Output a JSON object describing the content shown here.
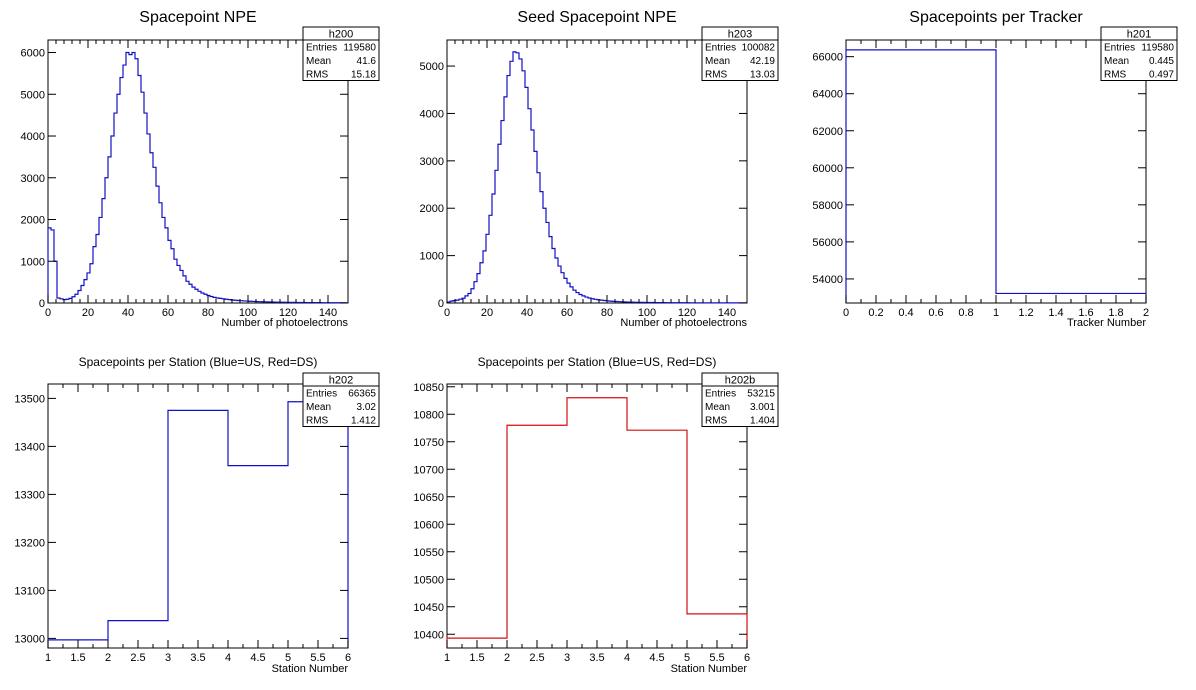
{
  "colors": {
    "blue": "#1010c8",
    "red": "#d01010",
    "axis": "#000000"
  },
  "chart_data": [
    {
      "id": "h200",
      "type": "histogram",
      "title": "Spacepoint NPE",
      "xlabel": "Number of photoelectrons",
      "ylabel": "",
      "xlim": [
        0,
        150
      ],
      "ylim": [
        0,
        6300
      ],
      "x_ticks": [
        0,
        20,
        40,
        60,
        80,
        100,
        120,
        140
      ],
      "y_ticks": [
        0,
        1000,
        2000,
        3000,
        4000,
        5000,
        6000
      ],
      "x_minor": 5,
      "color": "blue",
      "stats": [
        {
          "label": "Entries",
          "value": "119580"
        },
        {
          "label": "Mean",
          "value": "41.6"
        },
        {
          "label": "RMS",
          "value": "15.18"
        }
      ],
      "bin_width": 1.5,
      "values": [
        1800,
        1750,
        1000,
        120,
        100,
        80,
        90,
        110,
        150,
        210,
        300,
        420,
        560,
        720,
        940,
        1350,
        1640,
        2050,
        2500,
        3000,
        3500,
        4000,
        4550,
        5000,
        5400,
        5700,
        6000,
        5950,
        6000,
        5850,
        5450,
        5050,
        4550,
        4050,
        3600,
        3250,
        2800,
        2400,
        2050,
        1800,
        1500,
        1300,
        1050,
        900,
        780,
        650,
        520,
        450,
        380,
        330,
        280,
        240,
        210,
        180,
        155,
        135,
        120,
        110,
        100,
        90,
        80,
        72,
        66,
        60,
        55,
        50,
        46,
        42,
        38,
        35,
        32,
        30,
        28,
        26,
        24,
        22,
        20,
        19,
        18,
        17,
        16,
        15,
        14,
        13,
        12,
        12,
        11,
        10,
        10,
        9,
        9,
        8,
        8,
        7,
        7,
        7,
        6,
        6,
        6,
        5
      ]
    },
    {
      "id": "h203",
      "type": "histogram",
      "title": "Seed Spacepoint NPE",
      "xlabel": "Number of photoelectrons",
      "ylabel": "",
      "xlim": [
        0,
        150
      ],
      "ylim": [
        0,
        5550
      ],
      "x_ticks": [
        0,
        20,
        40,
        60,
        80,
        100,
        120,
        140
      ],
      "y_ticks": [
        0,
        1000,
        2000,
        3000,
        4000,
        5000
      ],
      "x_minor": 5,
      "color": "blue",
      "stats": [
        {
          "label": "Entries",
          "value": "100082"
        },
        {
          "label": "Mean",
          "value": "42.19"
        },
        {
          "label": "RMS",
          "value": "13.03"
        }
      ],
      "bin_width": 1.5,
      "values": [
        20,
        40,
        50,
        60,
        80,
        100,
        150,
        200,
        300,
        450,
        620,
        850,
        1100,
        1450,
        1850,
        2300,
        2800,
        3350,
        3850,
        4350,
        4800,
        5100,
        5300,
        5280,
        5150,
        4900,
        4550,
        4100,
        3650,
        3200,
        2750,
        2350,
        2000,
        1700,
        1400,
        1150,
        950,
        780,
        640,
        520,
        420,
        340,
        270,
        220,
        180,
        150,
        125,
        105,
        90,
        78,
        68,
        60,
        52,
        46,
        40,
        35,
        31,
        28,
        25,
        22,
        20,
        18,
        16,
        15,
        14,
        13,
        12,
        11,
        10,
        9,
        9,
        8,
        8,
        7,
        7,
        6,
        6,
        6,
        5,
        5,
        5,
        4,
        4,
        4,
        4,
        3,
        3,
        3,
        3,
        3,
        3,
        2,
        2,
        2,
        2,
        2,
        2,
        2,
        2,
        2
      ]
    },
    {
      "id": "h201",
      "type": "histogram",
      "title": "Spacepoints per Tracker",
      "xlabel": "Tracker Number",
      "ylabel": "",
      "xlim": [
        0,
        2
      ],
      "ylim": [
        52700,
        66900
      ],
      "x_ticks": [
        0,
        0.2,
        0.4,
        0.6,
        0.8,
        1,
        1.2,
        1.4,
        1.6,
        1.8,
        2
      ],
      "y_ticks": [
        54000,
        56000,
        58000,
        60000,
        62000,
        64000,
        66000
      ],
      "x_minor": 2,
      "color": "blue",
      "stats": [
        {
          "label": "Entries",
          "value": "119580"
        },
        {
          "label": "Mean",
          "value": "0.445"
        },
        {
          "label": "RMS",
          "value": "0.497"
        }
      ],
      "bin_width": 1,
      "values": [
        66365,
        53215
      ]
    },
    {
      "id": "h202",
      "type": "histogram",
      "title": "Spacepoints per Station (Blue=US, Red=DS)",
      "xlabel": "Station Number",
      "ylabel": "",
      "xlim": [
        1,
        6
      ],
      "ylim": [
        12980,
        13530
      ],
      "x_ticks": [
        1,
        1.5,
        2,
        2.5,
        3,
        3.5,
        4,
        4.5,
        5,
        5.5,
        6
      ],
      "y_ticks": [
        13000,
        13100,
        13200,
        13300,
        13400,
        13500
      ],
      "x_minor": 2,
      "color": "blue",
      "stats": [
        {
          "label": "Entries",
          "value": "66365"
        },
        {
          "label": "Mean",
          "value": "3.02"
        },
        {
          "label": "RMS",
          "value": "1.412"
        }
      ],
      "bin_width": 1,
      "values": [
        12997,
        13037,
        13475,
        13360,
        13493
      ]
    },
    {
      "id": "h202b",
      "type": "histogram",
      "title": "Spacepoints per Station (Blue=US, Red=DS)",
      "xlabel": "Station Number",
      "ylabel": "",
      "xlim": [
        1,
        6
      ],
      "ylim": [
        10375,
        10855
      ],
      "x_ticks": [
        1,
        1.5,
        2,
        2.5,
        3,
        3.5,
        4,
        4.5,
        5,
        5.5,
        6
      ],
      "y_ticks": [
        10400,
        10450,
        10500,
        10550,
        10600,
        10650,
        10700,
        10750,
        10800,
        10850
      ],
      "x_minor": 2,
      "color": "red",
      "stats": [
        {
          "label": "Entries",
          "value": "53215"
        },
        {
          "label": "Mean",
          "value": "3.001"
        },
        {
          "label": "RMS",
          "value": "1.404"
        }
      ],
      "bin_width": 1,
      "values": [
        10393,
        10780,
        10830,
        10771,
        10437
      ]
    }
  ]
}
